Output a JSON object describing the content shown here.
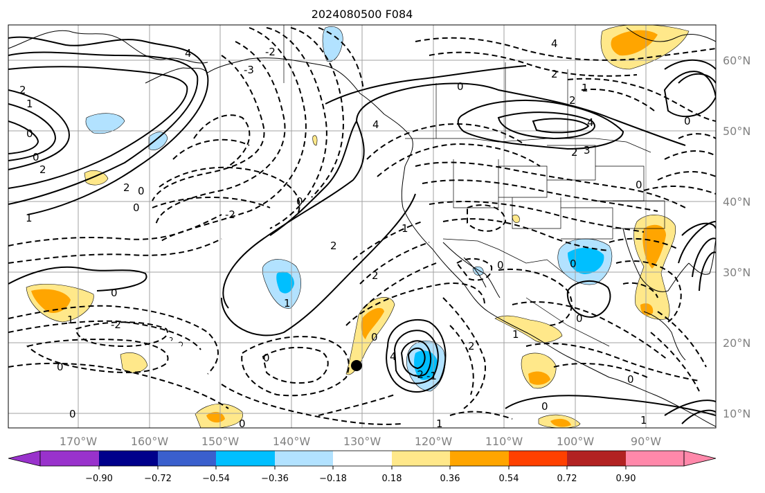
{
  "map": {
    "title": "2024080500 F084",
    "lon_ticks": [
      "170°W",
      "160°W",
      "150°W",
      "140°W",
      "130°W",
      "120°W",
      "110°W",
      "100°W",
      "90°W"
    ],
    "lat_ticks": [
      "60°N",
      "50°N",
      "40°N",
      "30°N",
      "20°N",
      "10°N"
    ],
    "extent": {
      "lon": [
        -180,
        -80
      ],
      "lat": [
        8,
        65
      ]
    },
    "contour_labels": [
      "0",
      "1",
      "2",
      "3",
      "4",
      "-1",
      "-2",
      "-3"
    ],
    "marker": {
      "lon": -131,
      "lat": 17,
      "symbol": "filled-circle"
    }
  },
  "colorbar": {
    "tick_labels": [
      "−0.90",
      "−0.72",
      "−0.54",
      "−0.36",
      "−0.18",
      "0.18",
      "0.36",
      "0.54",
      "0.72",
      "0.90"
    ],
    "colors": [
      "#9932cc",
      "#00008b",
      "#3a5fcd",
      "#00bfff",
      "#b2e2ff",
      "#ffffff",
      "#ffe88a",
      "#ffa500",
      "#ff4000",
      "#b22222",
      "#ff88aa"
    ]
  }
}
